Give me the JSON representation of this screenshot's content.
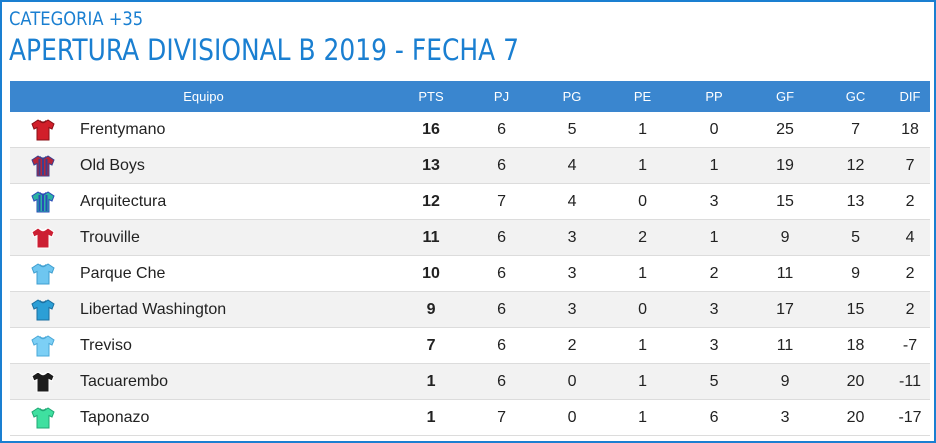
{
  "header": {
    "category": "CATEGORIA +35",
    "title": "APERTURA DIVISIONAL B 2019 - FECHA 7"
  },
  "table": {
    "columns": {
      "team": "Equipo",
      "pts": "PTS",
      "pj": "PJ",
      "pg": "PG",
      "pe": "PE",
      "pp": "PP",
      "gf": "GF",
      "gc": "GC",
      "dif": "DIF"
    },
    "rows": [
      {
        "team": "Frentymano",
        "pts": "16",
        "pj": "6",
        "pg": "5",
        "pe": "1",
        "pp": "0",
        "gf": "25",
        "gc": "7",
        "dif": "18",
        "shirt": {
          "body": "#d11f2a",
          "stripe": "",
          "trim": "#8a0f16",
          "icon": "red-shirt-icon"
        }
      },
      {
        "team": "Old Boys",
        "pts": "13",
        "pj": "6",
        "pg": "4",
        "pe": "1",
        "pp": "1",
        "gf": "19",
        "gc": "12",
        "dif": "7",
        "shirt": {
          "body": "#b4263a",
          "stripe": "#3a3f8f",
          "trim": "#3a3f8f",
          "icon": "striped-shirt-icon"
        }
      },
      {
        "team": "Arquitectura",
        "pts": "12",
        "pj": "7",
        "pg": "4",
        "pe": "0",
        "pp": "3",
        "gf": "15",
        "gc": "13",
        "dif": "2",
        "shirt": {
          "body": "#2bb3a3",
          "stripe": "#2a4bb8",
          "trim": "#2a4bb8",
          "icon": "teal-blue-shirt-icon"
        }
      },
      {
        "team": "Trouville",
        "pts": "11",
        "pj": "6",
        "pg": "3",
        "pe": "2",
        "pp": "1",
        "gf": "9",
        "gc": "5",
        "dif": "4",
        "shirt": {
          "body": "#cc1f33",
          "stripe": "",
          "trim": "#ffffff",
          "icon": "red-white-shirt-icon"
        }
      },
      {
        "team": "Parque Che",
        "pts": "10",
        "pj": "6",
        "pg": "3",
        "pe": "1",
        "pp": "2",
        "gf": "11",
        "gc": "9",
        "dif": "2",
        "shirt": {
          "body": "#6ec6f0",
          "stripe": "",
          "trim": "#3f9fd0",
          "icon": "sky-blue-shirt-icon"
        }
      },
      {
        "team": "Libertad Washington",
        "pts": "9",
        "pj": "6",
        "pg": "3",
        "pe": "0",
        "pp": "3",
        "gf": "17",
        "gc": "15",
        "dif": "2",
        "shirt": {
          "body": "#2c9fd6",
          "stripe": "",
          "trim": "#1a6fa0",
          "icon": "blue-shirt-icon"
        }
      },
      {
        "team": "Treviso",
        "pts": "7",
        "pj": "6",
        "pg": "2",
        "pe": "1",
        "pp": "3",
        "gf": "11",
        "gc": "18",
        "dif": "-7",
        "shirt": {
          "body": "#7ccff5",
          "stripe": "",
          "trim": "#4aa8d8",
          "icon": "light-blue-shirt-icon"
        }
      },
      {
        "team": "Tacuarembo",
        "pts": "1",
        "pj": "6",
        "pg": "0",
        "pe": "1",
        "pp": "5",
        "gf": "9",
        "gc": "20",
        "dif": "-11",
        "shirt": {
          "body": "#1c1c1c",
          "stripe": "",
          "trim": "#ffffff",
          "icon": "black-shirt-icon"
        }
      },
      {
        "team": "Taponazo",
        "pts": "1",
        "pj": "7",
        "pg": "0",
        "pe": "1",
        "pp": "6",
        "gf": "3",
        "gc": "20",
        "dif": "-17",
        "shirt": {
          "body": "#3fe0a0",
          "stripe": "",
          "trim": "#1fa874",
          "icon": "green-shirt-icon"
        }
      }
    ]
  }
}
